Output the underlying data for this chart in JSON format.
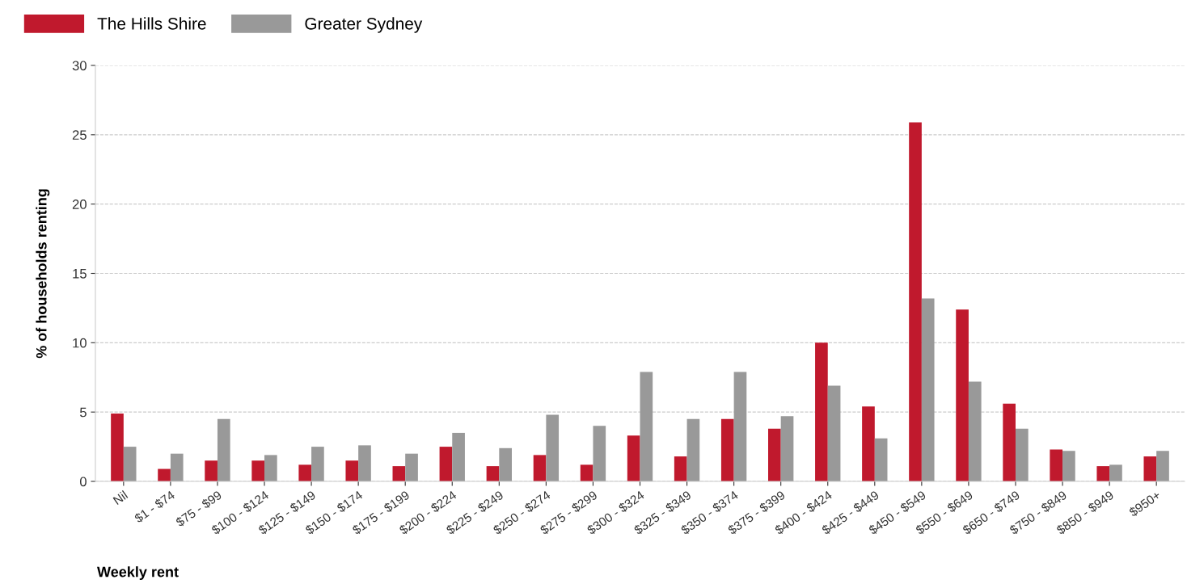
{
  "chart_data": {
    "type": "bar",
    "xlabel": "Weekly rent",
    "ylabel": "% of households renting",
    "categories": [
      "Nil",
      "$1 - $74",
      "$75 - $99",
      "$100 - $124",
      "$125 - $149",
      "$150 - $174",
      "$175 - $199",
      "$200 - $224",
      "$225 - $249",
      "$250 - $274",
      "$275 - $299",
      "$300 - $324",
      "$325 - $349",
      "$350 - $374",
      "$375 - $399",
      "$400 - $424",
      "$425 - $449",
      "$450 - $549",
      "$550 - $649",
      "$650 - $749",
      "$750 - $849",
      "$850 - $949",
      "$950+"
    ],
    "series": [
      {
        "name": "The Hills Shire",
        "color": "#c0192d",
        "values": [
          4.9,
          0.9,
          1.5,
          1.5,
          1.2,
          1.5,
          1.1,
          2.5,
          1.1,
          1.9,
          1.2,
          3.3,
          1.8,
          4.5,
          3.8,
          10.0,
          5.4,
          25.9,
          12.4,
          5.6,
          2.3,
          1.1,
          1.8
        ]
      },
      {
        "name": "Greater Sydney",
        "color": "#999999",
        "values": [
          2.5,
          2.0,
          4.5,
          1.9,
          2.5,
          2.6,
          2.0,
          3.5,
          2.4,
          4.8,
          4.0,
          7.9,
          4.5,
          7.9,
          4.7,
          6.9,
          3.1,
          13.2,
          7.2,
          3.8,
          2.2,
          1.2,
          2.2
        ]
      }
    ],
    "ylim": [
      0,
      30
    ],
    "yticks": [
      0,
      5,
      10,
      15,
      20,
      25,
      30
    ],
    "grid": "y",
    "legend": "top left"
  }
}
